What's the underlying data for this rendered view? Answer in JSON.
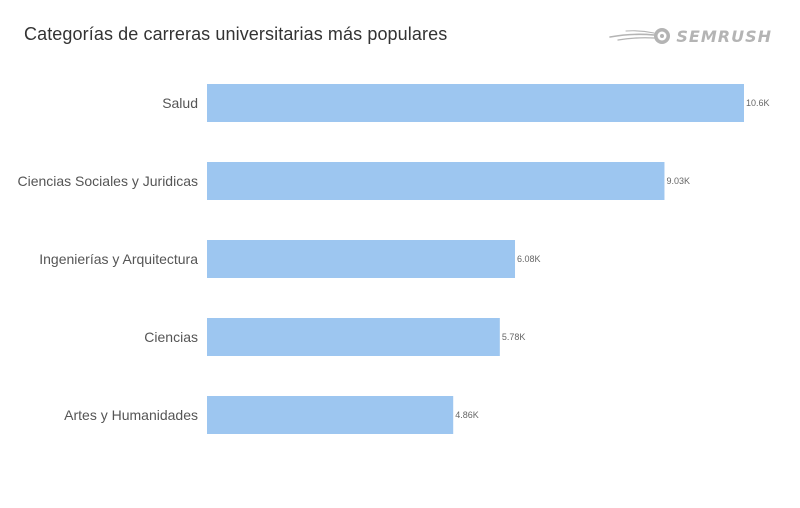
{
  "title": "Categorías de carreras universitarias más populares",
  "logo": {
    "text": "SEMRUSH",
    "icon": "semrush-fireball-icon",
    "color": "#b4b4b4"
  },
  "chart_data": {
    "type": "bar",
    "orientation": "horizontal",
    "title": "Categorías de carreras universitarias más populares",
    "categories": [
      "Salud",
      "Ciencias Sociales y Juridicas",
      "Ingenierías y Arquitectura",
      "Ciencias",
      "Artes y Humanidades"
    ],
    "values": [
      10600,
      9030,
      6080,
      5780,
      4860
    ],
    "value_labels": [
      "10.6K",
      "9.03K",
      "6.08K",
      "5.78K",
      "4.86K"
    ],
    "bar_color": "#9dc6f0",
    "xlim": [
      0,
      10600
    ],
    "grid": false,
    "legend": "none"
  }
}
